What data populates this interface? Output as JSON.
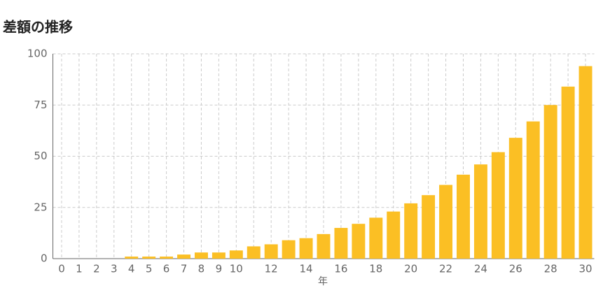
{
  "chart_data": {
    "type": "bar",
    "title": "差額の推移",
    "x_label": "年",
    "categories": [
      0,
      1,
      2,
      3,
      4,
      5,
      6,
      7,
      8,
      9,
      10,
      null,
      12,
      null,
      14,
      null,
      16,
      null,
      18,
      null,
      20,
      null,
      22,
      null,
      24,
      null,
      26,
      null,
      28,
      null,
      30
    ],
    "values": [
      0,
      0,
      0,
      0,
      1,
      1,
      1,
      2,
      3,
      3,
      4,
      6,
      7,
      9,
      10,
      12,
      15,
      17,
      20,
      23,
      27,
      31,
      36,
      41,
      46,
      52,
      59,
      67,
      75,
      84,
      94
    ],
    "color": "#fbbf24",
    "ylim": [
      0,
      100
    ],
    "yticks": [
      0,
      25,
      50,
      75,
      100
    ],
    "grid": true
  }
}
